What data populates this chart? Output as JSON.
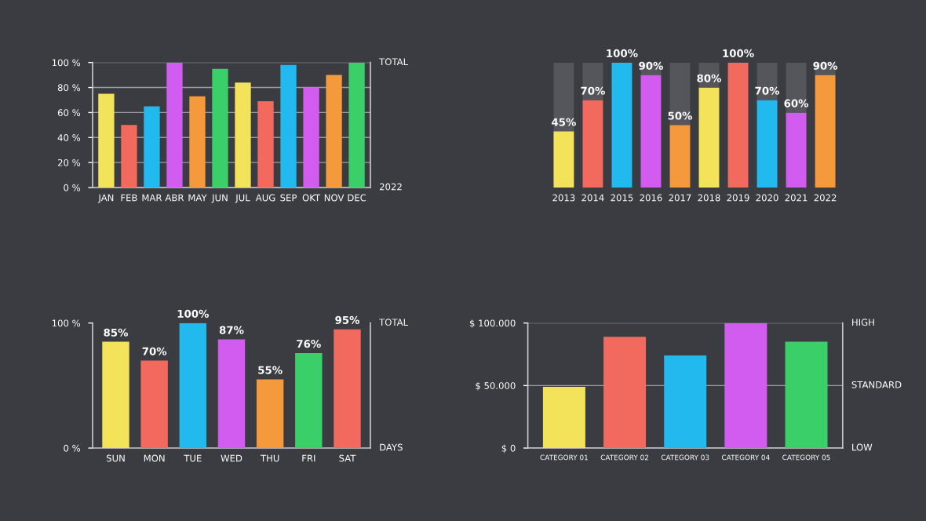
{
  "chart_data": [
    {
      "type": "bar",
      "categories": [
        "JAN",
        "FEB",
        "MAR",
        "ABR",
        "MAY",
        "JUN",
        "JUL",
        "AUG",
        "SEP",
        "OKT",
        "NOV",
        "DEC"
      ],
      "series": [
        {
          "colors": [
            "#f3e35a",
            "#f26a5e",
            "#22b9ef",
            "#d35cf0",
            "#f59a3c",
            "#3bcf6a",
            "#f3e35a",
            "#f26a5e",
            "#22b9ef",
            "#d35cf0",
            "#f59a3c",
            "#3bcf6a"
          ],
          "values": [
            75,
            50,
            65,
            100,
            73,
            95,
            84,
            69,
            98,
            80,
            90,
            100
          ]
        }
      ],
      "ylim": [
        0,
        100
      ],
      "yticks": [
        {
          "value": 0,
          "label": "0 %"
        },
        {
          "value": 20,
          "label": "20 %"
        },
        {
          "value": 40,
          "label": "40 %"
        },
        {
          "value": 60,
          "label": "60 %"
        },
        {
          "value": 80,
          "label": "80 %"
        },
        {
          "value": 100,
          "label": "100 %"
        }
      ],
      "annotations": [
        "TOTAL",
        "2022"
      ],
      "grid": "y"
    },
    {
      "type": "bar",
      "stacked": true,
      "categories": [
        "2013",
        "2014",
        "2015",
        "2016",
        "2017",
        "2018",
        "2019",
        "2020",
        "2021",
        "2022"
      ],
      "series": [
        {
          "colors": [
            "#f3e35a",
            "#f26a5e",
            "#22b9ef",
            "#d35cf0",
            "#f59a3c",
            "#f3e35a",
            "#f26a5e",
            "#22b9ef",
            "#d35cf0",
            "#f59a3c"
          ],
          "values": [
            45,
            70,
            100,
            90,
            50,
            80,
            100,
            70,
            60,
            90
          ],
          "value_labels": [
            "45%",
            "70%",
            "100%",
            "90%",
            "50%",
            "80%",
            "100%",
            "70%",
            "60%",
            "90%"
          ]
        },
        {
          "color": "#55555c",
          "values": [
            55,
            30,
            0,
            10,
            50,
            20,
            0,
            30,
            40,
            10
          ]
        }
      ],
      "ylim": [
        0,
        100
      ],
      "tick_labels": "x"
    },
    {
      "type": "bar",
      "categories": [
        "SUN",
        "MON",
        "TUE",
        "WED",
        "THU",
        "FRI",
        "SAT"
      ],
      "series": [
        {
          "colors": [
            "#f3e35a",
            "#f26a5e",
            "#22b9ef",
            "#d35cf0",
            "#f59a3c",
            "#3bcf6a",
            "#f26a5e"
          ],
          "values": [
            85,
            70,
            100,
            87,
            55,
            76,
            95
          ],
          "value_labels": [
            "85%",
            "70%",
            "100%",
            "87%",
            "55%",
            "76%",
            "95%"
          ]
        }
      ],
      "ylim": [
        0,
        100
      ],
      "yticks": [
        {
          "value": 0,
          "label": "0 %"
        },
        {
          "value": 100,
          "label": "100 %"
        }
      ],
      "annotations": [
        "TOTAL",
        "DAYS"
      ]
    },
    {
      "type": "bar",
      "categories": [
        "CATEGORY 01",
        "CATEGORY 02",
        "CATEGORY 03",
        "CATEGORY 04",
        "CATEGORY 05"
      ],
      "series": [
        {
          "colors": [
            "#f3e35a",
            "#f26a5e",
            "#22b9ef",
            "#d35cf0",
            "#3bcf6a"
          ],
          "values": [
            49000,
            89000,
            74000,
            100000,
            85000
          ]
        }
      ],
      "ylim": [
        0,
        100000
      ],
      "yticks": [
        {
          "value": 0,
          "label": "$ 0"
        },
        {
          "value": 50000,
          "label": "$ 50.000"
        },
        {
          "value": 100000,
          "label": "$ 100.000"
        }
      ],
      "annotations": [
        "HIGH",
        "STANDARD",
        "LOW"
      ],
      "grid": "y"
    }
  ]
}
